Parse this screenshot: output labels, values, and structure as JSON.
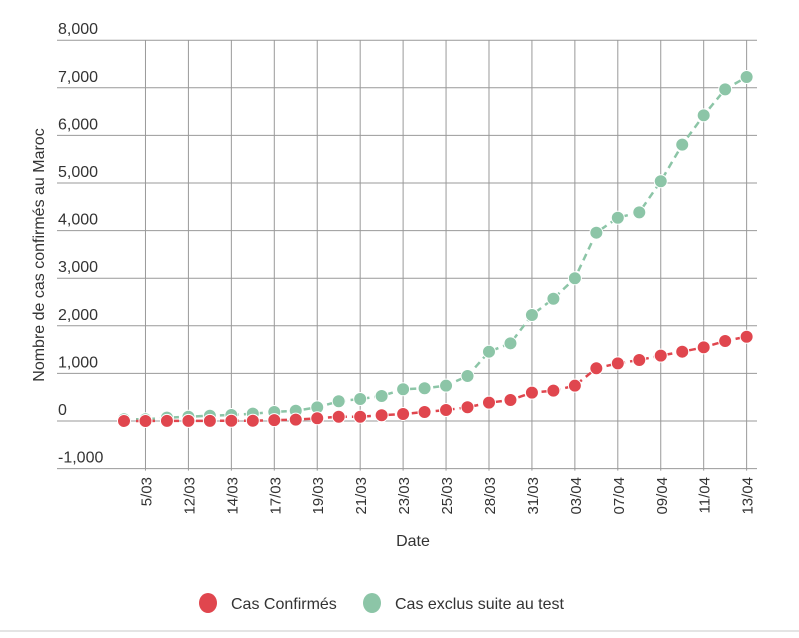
{
  "chart_data": {
    "type": "line",
    "title": "",
    "xlabel": "Date",
    "ylabel": "Nombre de cas confirmés au Maroc",
    "ylim": [
      -1000,
      8000
    ],
    "yticks": [
      -1000,
      0,
      1000,
      2000,
      3000,
      4000,
      5000,
      6000,
      7000,
      8000
    ],
    "ytick_labels": [
      "-1,000",
      "0",
      "1,000",
      "2,000",
      "3,000",
      "4,000",
      "5,000",
      "6,000",
      "7,000",
      "8,000"
    ],
    "grid": true,
    "legend_position": "bottom",
    "categories": [
      "",
      "5/03",
      "",
      "12/03",
      "",
      "14/03",
      "",
      "17/03",
      "",
      "19/03",
      "",
      "21/03",
      "",
      "23/03",
      "",
      "25/03",
      "",
      "28/03",
      "",
      "31/03",
      "",
      "03/04",
      "",
      "07/04",
      "",
      "09/04",
      "",
      "11/04",
      "",
      "13/04"
    ],
    "series": [
      {
        "name": "Cas Confirmés",
        "color": "#e0464e",
        "dashed": true,
        "values": [
          1,
          1,
          2,
          2,
          3,
          5,
          6,
          18,
          28,
          57,
          90,
          90,
          120,
          147,
          189,
          231,
          288,
          385,
          441,
          595,
          637,
          742,
          1107,
          1211,
          1282,
          1373,
          1456,
          1548,
          1681,
          1771
        ]
      },
      {
        "name": "Cas exclus suite au test",
        "color": "#8cc5a7",
        "dashed": false,
        "values": [
          36,
          36,
          70,
          90,
          111,
          126,
          154,
          189,
          216,
          287,
          414,
          462,
          525,
          666,
          687,
          742,
          945,
          1456,
          1632,
          2227,
          2569,
          2998,
          3956,
          4271,
          4384,
          5036,
          5805,
          6422,
          6968,
          7227
        ]
      }
    ]
  }
}
